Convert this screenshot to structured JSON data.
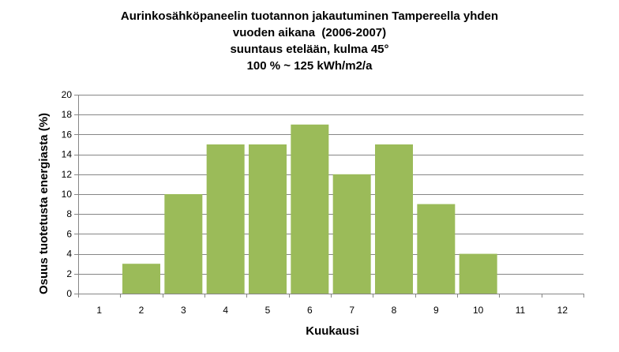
{
  "chart_data": {
    "type": "bar",
    "title_lines": [
      "Aurinkosähköpaneelin tuotannon jakautuminen Tampereella yhden",
      "vuoden aikana  (2006-2007)",
      "suuntaus etelään, kulma 45°",
      "100 % ~ 125 kWh/m2/a"
    ],
    "xlabel": "Kuukausi",
    "ylabel": "Osuus tuotetusta energiasta (%)",
    "categories": [
      "1",
      "2",
      "3",
      "4",
      "5",
      "6",
      "7",
      "8",
      "9",
      "10",
      "11",
      "12"
    ],
    "values": [
      0,
      3,
      10,
      15,
      15,
      17,
      12,
      15,
      9,
      4,
      0,
      0
    ],
    "ylim": [
      0,
      20
    ],
    "yticks": [
      0,
      2,
      4,
      6,
      8,
      10,
      12,
      14,
      16,
      18,
      20
    ],
    "grid": true,
    "bar_color": "#9bbb59",
    "grid_color": "#868686"
  }
}
